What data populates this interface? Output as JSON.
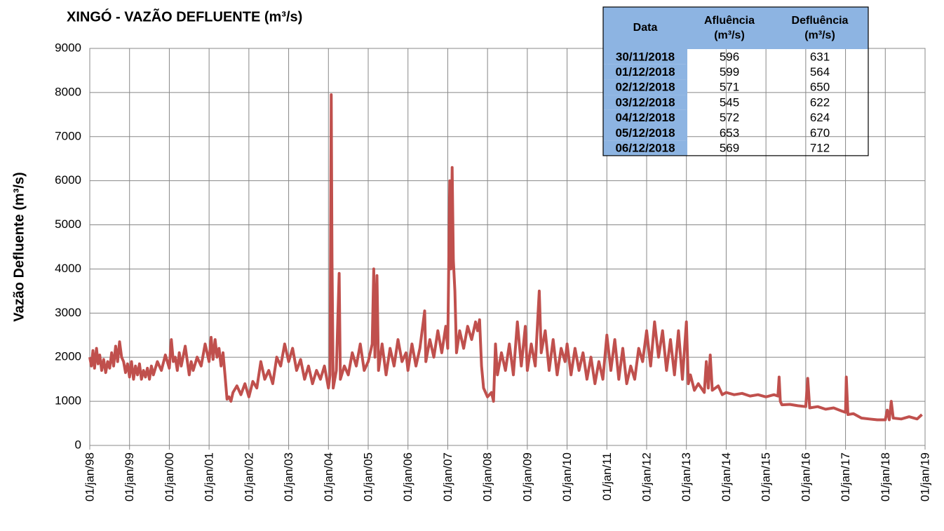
{
  "chart_data": {
    "type": "line",
    "title": "XINGÓ - VAZÃO DEFLUENTE (m³/s)",
    "y_label": "Vazão Defluente  (m³/s)",
    "color": "#c0504d",
    "grid": true,
    "ylim": [
      0,
      9000
    ],
    "yticks": [
      0,
      1000,
      2000,
      3000,
      4000,
      5000,
      6000,
      7000,
      8000,
      9000
    ],
    "xlim": [
      1998,
      2019
    ],
    "xticks": [
      {
        "value": 1998,
        "label": "01/jan/98"
      },
      {
        "value": 1999,
        "label": "01/jan/99"
      },
      {
        "value": 2000,
        "label": "01/jan/00"
      },
      {
        "value": 2001,
        "label": "01/jan/01"
      },
      {
        "value": 2002,
        "label": "01/jan/02"
      },
      {
        "value": 2003,
        "label": "01/jan/03"
      },
      {
        "value": 2004,
        "label": "01/jan/04"
      },
      {
        "value": 2005,
        "label": "01/jan/05"
      },
      {
        "value": 2006,
        "label": "01/jan/06"
      },
      {
        "value": 2007,
        "label": "01/jan/07"
      },
      {
        "value": 2008,
        "label": "01/jan/08"
      },
      {
        "value": 2009,
        "label": "01/jan/09"
      },
      {
        "value": 2010,
        "label": "01/jan/10"
      },
      {
        "value": 2011,
        "label": "01/jan/11"
      },
      {
        "value": 2012,
        "label": "01/jan/12"
      },
      {
        "value": 2013,
        "label": "01/jan/13"
      },
      {
        "value": 2014,
        "label": "01/jan/14"
      },
      {
        "value": 2015,
        "label": "01/jan/15"
      },
      {
        "value": 2016,
        "label": "01/jan/16"
      },
      {
        "value": 2017,
        "label": "01/jan/17"
      },
      {
        "value": 2018,
        "label": "01/jan/18"
      },
      {
        "value": 2019,
        "label": "01/jan/19"
      }
    ],
    "x": [
      1998.0,
      1998.04,
      1998.08,
      1998.12,
      1998.17,
      1998.21,
      1998.25,
      1998.3,
      1998.35,
      1998.4,
      1998.45,
      1998.5,
      1998.55,
      1998.6,
      1998.65,
      1998.7,
      1998.75,
      1998.8,
      1998.85,
      1998.9,
      1998.95,
      1999.0,
      1999.05,
      1999.1,
      1999.15,
      1999.2,
      1999.25,
      1999.3,
      1999.35,
      1999.4,
      1999.45,
      1999.5,
      1999.55,
      1999.6,
      1999.7,
      1999.8,
      1999.9,
      2000.0,
      2000.05,
      2000.1,
      2000.15,
      2000.2,
      2000.25,
      2000.3,
      2000.4,
      2000.5,
      2000.55,
      2000.6,
      2000.7,
      2000.8,
      2000.9,
      2001.0,
      2001.05,
      2001.1,
      2001.15,
      2001.2,
      2001.25,
      2001.3,
      2001.35,
      2001.4,
      2001.45,
      2001.5,
      2001.55,
      2001.6,
      2001.7,
      2001.8,
      2001.9,
      2002.0,
      2002.1,
      2002.2,
      2002.3,
      2002.4,
      2002.5,
      2002.6,
      2002.7,
      2002.8,
      2002.9,
      2003.0,
      2003.1,
      2003.2,
      2003.3,
      2003.4,
      2003.5,
      2003.6,
      2003.7,
      2003.8,
      2003.9,
      2004.0,
      2004.04,
      2004.07,
      2004.09,
      2004.12,
      2004.2,
      2004.27,
      2004.3,
      2004.4,
      2004.5,
      2004.6,
      2004.7,
      2004.8,
      2004.9,
      2005.0,
      2005.1,
      2005.14,
      2005.17,
      2005.22,
      2005.26,
      2005.35,
      2005.45,
      2005.55,
      2005.65,
      2005.75,
      2005.85,
      2005.95,
      2006.0,
      2006.1,
      2006.2,
      2006.3,
      2006.42,
      2006.45,
      2006.55,
      2006.65,
      2006.75,
      2006.85,
      2006.95,
      2007.0,
      2007.05,
      2007.08,
      2007.11,
      2007.14,
      2007.18,
      2007.22,
      2007.3,
      2007.4,
      2007.5,
      2007.6,
      2007.7,
      2007.75,
      2007.8,
      2007.85,
      2007.9,
      2008.0,
      2008.1,
      2008.15,
      2008.2,
      2008.25,
      2008.35,
      2008.45,
      2008.55,
      2008.65,
      2008.75,
      2008.85,
      2008.95,
      2009.0,
      2009.1,
      2009.2,
      2009.3,
      2009.35,
      2009.45,
      2009.55,
      2009.65,
      2009.75,
      2009.85,
      2009.95,
      2010.0,
      2010.1,
      2010.2,
      2010.3,
      2010.4,
      2010.5,
      2010.6,
      2010.7,
      2010.8,
      2010.9,
      2011.0,
      2011.1,
      2011.2,
      2011.3,
      2011.4,
      2011.5,
      2011.6,
      2011.7,
      2011.8,
      2011.9,
      2012.0,
      2012.1,
      2012.2,
      2012.3,
      2012.4,
      2012.5,
      2012.6,
      2012.7,
      2012.8,
      2012.9,
      2013.0,
      2013.05,
      2013.1,
      2013.2,
      2013.3,
      2013.45,
      2013.5,
      2013.55,
      2013.6,
      2013.65,
      2013.8,
      2013.9,
      2014.0,
      2014.2,
      2014.4,
      2014.6,
      2014.8,
      2015.0,
      2015.2,
      2015.3,
      2015.33,
      2015.36,
      2015.4,
      2015.6,
      2015.8,
      2016.0,
      2016.05,
      2016.1,
      2016.3,
      2016.5,
      2016.7,
      2016.9,
      2017.0,
      2017.02,
      2017.06,
      2017.2,
      2017.4,
      2017.6,
      2017.8,
      2018.0,
      2018.05,
      2018.1,
      2018.15,
      2018.2,
      2018.4,
      2018.6,
      2018.8,
      2018.92
    ],
    "values": [
      2000,
      1800,
      2150,
      1750,
      2200,
      1850,
      2050,
      1700,
      1950,
      1650,
      1900,
      1750,
      2100,
      1800,
      2250,
      1900,
      2350,
      2000,
      1900,
      1650,
      1850,
      1550,
      1900,
      1500,
      1800,
      1600,
      1850,
      1500,
      1700,
      1550,
      1750,
      1500,
      1800,
      1600,
      1900,
      1700,
      2050,
      1750,
      2400,
      1900,
      2000,
      1700,
      2100,
      1800,
      2250,
      1600,
      1900,
      1700,
      2000,
      1800,
      2300,
      1900,
      2450,
      1950,
      2400,
      2000,
      2200,
      1800,
      2100,
      1600,
      1050,
      1100,
      1000,
      1200,
      1350,
      1150,
      1400,
      1100,
      1450,
      1300,
      1900,
      1500,
      1700,
      1400,
      2000,
      1800,
      2300,
      1900,
      2200,
      1700,
      1950,
      1500,
      1800,
      1400,
      1700,
      1500,
      1800,
      1300,
      1600,
      7950,
      4200,
      1300,
      1700,
      3900,
      1500,
      1800,
      1600,
      2100,
      1800,
      2300,
      1700,
      1900,
      2300,
      4000,
      2000,
      3850,
      1700,
      2300,
      1600,
      2200,
      1800,
      2400,
      1900,
      2100,
      1700,
      2300,
      1800,
      2200,
      3050,
      1900,
      2400,
      2000,
      2600,
      2100,
      2700,
      2200,
      6000,
      4000,
      6300,
      4200,
      3500,
      2100,
      2600,
      2200,
      2700,
      2400,
      2800,
      2600,
      2850,
      1800,
      1300,
      1100,
      1200,
      1000,
      2300,
      1600,
      2100,
      1700,
      2300,
      1600,
      2800,
      1800,
      2700,
      1700,
      2300,
      1800,
      3500,
      2100,
      2600,
      1700,
      2400,
      1600,
      2200,
      1900,
      2300,
      1600,
      2200,
      1700,
      2100,
      1500,
      2000,
      1400,
      1900,
      1500,
      2500,
      1700,
      2400,
      1500,
      2200,
      1400,
      1800,
      1500,
      2200,
      1900,
      2600,
      1800,
      2800,
      2000,
      2600,
      1700,
      2400,
      1600,
      2600,
      1500,
      2800,
      1400,
      1600,
      1250,
      1400,
      1200,
      1900,
      1300,
      2050,
      1250,
      1350,
      1150,
      1200,
      1150,
      1180,
      1120,
      1150,
      1100,
      1150,
      1120,
      1550,
      1000,
      920,
      930,
      900,
      880,
      1520,
      850,
      880,
      820,
      850,
      780,
      750,
      1550,
      700,
      720,
      620,
      600,
      580,
      580,
      800,
      580,
      1000,
      620,
      600,
      650,
      600,
      700
    ]
  },
  "table": {
    "header": [
      [
        "Data"
      ],
      [
        "Afluência",
        "(m³/s)"
      ],
      [
        "Defluência",
        "(m³/s)"
      ]
    ],
    "rows": [
      [
        "30/11/2018",
        "596",
        "631"
      ],
      [
        "01/12/2018",
        "599",
        "564"
      ],
      [
        "02/12/2018",
        "571",
        "650"
      ],
      [
        "03/12/2018",
        "545",
        "622"
      ],
      [
        "04/12/2018",
        "572",
        "624"
      ],
      [
        "05/12/2018",
        "653",
        "670"
      ],
      [
        "06/12/2018",
        "569",
        "712"
      ]
    ]
  }
}
